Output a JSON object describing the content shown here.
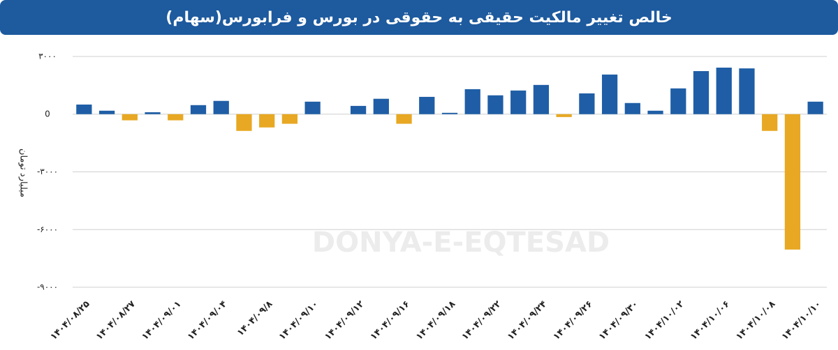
{
  "chart_data": {
    "type": "bar",
    "title": "خالص تغییر مالکیت حقیقی به حقوقی در بورس و فرابورس(سهام)",
    "y_label": "میلیارد تومان",
    "watermark": "DONYA-E-EQTESAD",
    "categories": [
      "۱۴۰۴/۰۸/۲۵",
      null,
      "۱۴۰۴/۰۸/۲۷",
      null,
      "۱۴۰۴/۰۹/۰۱",
      null,
      "۱۴۰۴/۰۹/۰۴",
      null,
      "۱۴۰۴/۰۹/۸",
      null,
      "۱۴۰۴/۰۹/۱۰",
      null,
      "۱۴۰۴/۰۹/۱۲",
      null,
      "۱۴۰۴/۰۹/۱۶",
      null,
      "۱۴۰۴/۰۹/۱۸",
      null,
      "۱۴۰۴/۰۹/۲۲",
      null,
      "۱۴۰۴/۰۹/۲۴",
      null,
      "۱۴۰۴/۰۹/۲۶",
      null,
      "۱۴۰۴/۰۹/۳۰",
      null,
      "۱۴۰۴/۱۰/۰۲",
      null,
      "۱۴۰۴/۱۰/۰۶",
      null,
      "۱۴۰۴/۱۰/۰۸",
      null,
      "۱۴۰۴/۱۰/۱۰"
    ],
    "values": [
      500,
      180,
      -320,
      100,
      -320,
      470,
      690,
      -870,
      -690,
      -500,
      650,
      0,
      430,
      800,
      -500,
      900,
      70,
      1300,
      980,
      1230,
      1520,
      -150,
      1080,
      2060,
      580,
      180,
      1340,
      2240,
      2420,
      2380,
      -870,
      -7040,
      650
    ],
    "positive_color": "#1f5ea6",
    "negative_color": "#e8a823",
    "ylim": [
      -9000,
      3000
    ],
    "yticks": [
      {
        "value": -9000,
        "label": "-۹۰۰۰"
      },
      {
        "value": -6000,
        "label": "-۶۰۰۰"
      },
      {
        "value": -3000,
        "label": "-۳۰۰۰"
      },
      0,
      {
        "value": 3000,
        "label": "۳۰۰۰"
      }
    ],
    "grid": true
  }
}
